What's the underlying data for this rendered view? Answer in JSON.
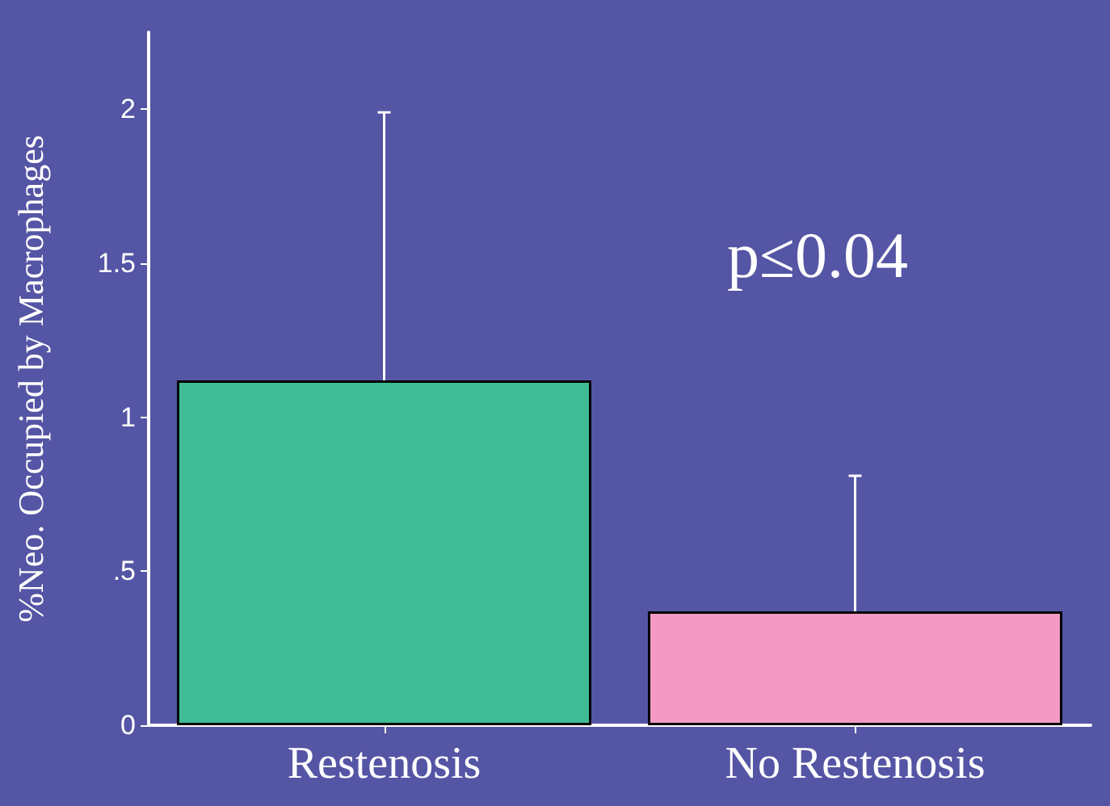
{
  "chart_data": {
    "type": "bar",
    "ylabel": "%Neo. Occupied by Macrophages",
    "categories": [
      "Restenosis",
      "No Restenosis"
    ],
    "values": [
      1.12,
      0.37
    ],
    "colors": [
      "#40bd94",
      "#f29ac4"
    ],
    "errors": [
      [
        1.12,
        1.99
      ],
      [
        0.37,
        0.81
      ]
    ],
    "ylim": [
      0,
      2.25
    ],
    "yticks": [
      0,
      {
        "value": 0.5,
        "label": ".5"
      },
      1,
      1.5,
      2
    ],
    "grid": false,
    "annotations": [
      "p≤0.04"
    ]
  }
}
